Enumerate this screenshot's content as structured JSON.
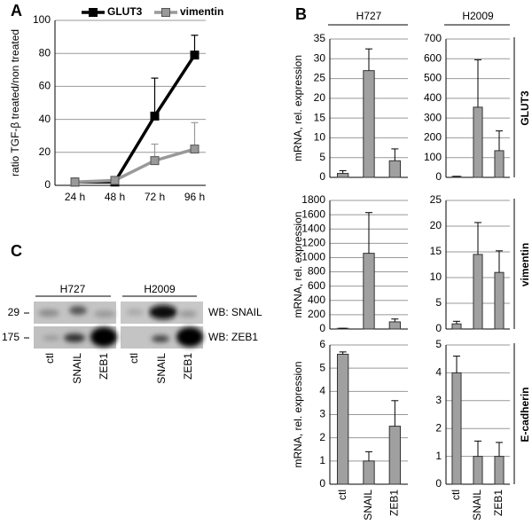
{
  "panel_labels": [
    "A",
    "B",
    "C"
  ],
  "chart_data": [
    {
      "type": "line",
      "ylabel": "ratio TGF-β treated/non treated",
      "categories": [
        "24 h",
        "48 h",
        "72 h",
        "96 h"
      ],
      "series": [
        {
          "name": "GLUT3",
          "color": "#000000",
          "values": [
            2,
            2,
            42,
            79
          ],
          "errors": [
            0,
            0,
            23,
            12
          ]
        },
        {
          "name": "vimentin",
          "color": "#999999",
          "values": [
            2,
            3,
            15,
            22
          ],
          "errors": [
            0,
            0,
            10,
            16
          ]
        }
      ],
      "ylim": [
        0,
        100
      ],
      "yticks": [
        0,
        20,
        40,
        60,
        80,
        100
      ],
      "grid": true
    },
    {
      "type": "bar",
      "title": "H727",
      "ylabel": "mRNA, rel. expression",
      "values": [
        1,
        27,
        4.2
      ],
      "errors": [
        0.7,
        5.5,
        3
      ],
      "color": "#a0a0a0",
      "ylim": [
        0,
        35
      ],
      "yticks": [
        0,
        5,
        10,
        15,
        20,
        25,
        30,
        35
      ],
      "grid": true
    },
    {
      "type": "bar",
      "title": "H2009",
      "row_label": "GLUT3",
      "values": [
        5,
        355,
        135
      ],
      "errors": [
        0,
        240,
        100
      ],
      "color": "#a0a0a0",
      "ylim": [
        0,
        700
      ],
      "yticks": [
        0,
        100,
        200,
        300,
        400,
        500,
        600,
        700
      ],
      "grid": true
    },
    {
      "type": "bar",
      "ylabel": "mRNA, rel. expression",
      "values": [
        10,
        1060,
        100
      ],
      "errors": [
        0,
        570,
        40
      ],
      "color": "#a0a0a0",
      "ylim": [
        0,
        1800
      ],
      "yticks": [
        0,
        200,
        400,
        600,
        800,
        1000,
        1200,
        1400,
        1600,
        1800
      ],
      "grid": true
    },
    {
      "type": "bar",
      "row_label": "vimentin",
      "values": [
        1,
        14.5,
        11
      ],
      "errors": [
        0.5,
        6.2,
        4.2
      ],
      "color": "#a0a0a0",
      "ylim": [
        0,
        25
      ],
      "yticks": [
        0,
        5,
        10,
        15,
        20,
        25
      ],
      "grid": true
    },
    {
      "type": "bar",
      "ylabel": "mRNA, rel. expression",
      "categories": [
        "ctl",
        "SNAIL",
        "ZEB1"
      ],
      "values": [
        5.6,
        1,
        2.5
      ],
      "errors": [
        0.1,
        0.4,
        1.1
      ],
      "color": "#a0a0a0",
      "ylim": [
        0,
        6
      ],
      "yticks": [
        0,
        1,
        2,
        3,
        4,
        5,
        6
      ],
      "grid": true
    },
    {
      "type": "bar",
      "row_label": "E-cadherin",
      "categories": [
        "ctl",
        "SNAIL",
        "ZEB1"
      ],
      "values": [
        4,
        1,
        1
      ],
      "errors": [
        0.6,
        0.55,
        0.5
      ],
      "color": "#a0a0a0",
      "ylim": [
        0,
        5
      ],
      "yticks": [
        0,
        1,
        2,
        3,
        4,
        5
      ],
      "grid": true
    }
  ],
  "blot": {
    "cell_lines": [
      "H727",
      "H2009"
    ],
    "markers": [
      "29",
      "175"
    ],
    "antibodies": [
      "WB: SNAIL",
      "WB: ZEB1"
    ],
    "lanes": [
      [
        "ctl",
        "SNAIL",
        "ZEB1"
      ],
      [
        "ctl",
        "SNAIL",
        "ZEB1"
      ]
    ]
  }
}
